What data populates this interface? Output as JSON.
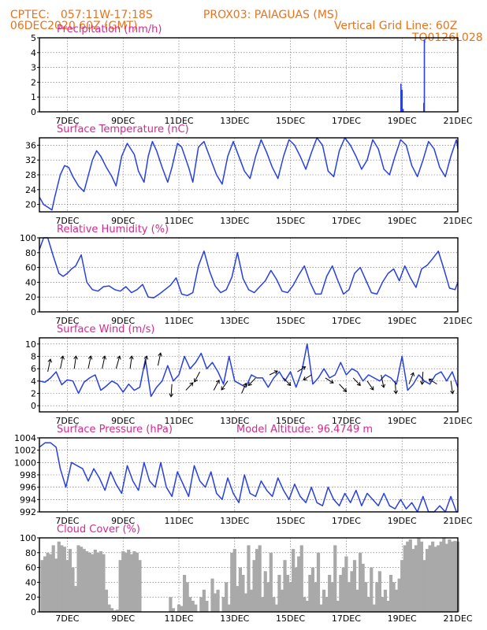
{
  "header": {
    "line1_left": "CPTEC:",
    "line1_coords": "057:11W-17:18S",
    "line1_station": "PROX03: PAIAGUAS (MS)",
    "line2_left": "06DEC2020 60Z (GMT)",
    "line2_right": "Vertical Grid Line: 60Z",
    "line3_right": "TQ0126L028"
  },
  "colors": {
    "header": "#e8731c",
    "title": "#d42a8c",
    "line": "#2840e0",
    "bar": "#a9a9a9",
    "axis": "#000000"
  },
  "chart_data": [
    {
      "id": "precipitation",
      "type": "bar",
      "title": "Precipitation (mm/h)",
      "xlim": [
        6.0,
        21.0
      ],
      "xticks": [
        7,
        9,
        11,
        13,
        15,
        17,
        19,
        21
      ],
      "xticklabels": [
        "7DEC",
        "9DEC",
        "11DEC",
        "13DEC",
        "15DEC",
        "17DEC",
        "19DEC",
        "21DEC"
      ],
      "ylim": [
        0,
        5
      ],
      "yticks": [
        0,
        1,
        2,
        3,
        4,
        5
      ],
      "x": [
        18.96,
        19.0,
        19.04,
        19.78,
        19.8
      ],
      "values": [
        1.9,
        1.5,
        0.2,
        0.6,
        4.9
      ]
    },
    {
      "id": "temperature",
      "type": "line",
      "title": "Surface Temperature (nC)",
      "xlim": [
        6.0,
        21.0
      ],
      "xticks": [
        7,
        9,
        11,
        13,
        15,
        17,
        19,
        21
      ],
      "xticklabels": [
        "7DEC",
        "9DEC",
        "11DEC",
        "13DEC",
        "15DEC",
        "17DEC",
        "19DEC",
        "21DEC"
      ],
      "ylim": [
        18,
        38
      ],
      "yticks": [
        20,
        24,
        28,
        32,
        36
      ],
      "x": [
        6.0,
        6.15,
        6.35,
        6.45,
        6.55,
        6.75,
        6.9,
        7.05,
        7.2,
        7.4,
        7.6,
        7.9,
        8.05,
        8.2,
        8.4,
        8.6,
        8.75,
        8.95,
        9.15,
        9.4,
        9.55,
        9.75,
        9.9,
        10.05,
        10.2,
        10.4,
        10.6,
        10.75,
        10.95,
        11.1,
        11.35,
        11.5,
        11.7,
        11.9,
        12.1,
        12.35,
        12.55,
        12.75,
        12.95,
        13.1,
        13.35,
        13.55,
        13.75,
        13.95,
        14.15,
        14.35,
        14.55,
        14.75,
        14.95,
        15.15,
        15.35,
        15.55,
        15.75,
        15.95,
        16.15,
        16.35,
        16.55,
        16.75,
        16.95,
        17.15,
        17.35,
        17.55,
        17.75,
        17.95,
        18.15,
        18.35,
        18.55,
        18.75,
        18.95,
        19.15,
        19.35,
        19.55,
        19.75,
        19.95,
        20.15,
        20.35,
        20.55,
        20.75,
        20.95,
        21.0
      ],
      "values": [
        22,
        20,
        19,
        18.5,
        22,
        28,
        30.5,
        30,
        27.5,
        25,
        23.5,
        32,
        34.5,
        33,
        30,
        27.5,
        25,
        33,
        36.5,
        33.5,
        29,
        26,
        33,
        37,
        34.5,
        30,
        26,
        30,
        36.5,
        35.5,
        30,
        26,
        35.5,
        37,
        33,
        28,
        25.5,
        33,
        37,
        34,
        29,
        27,
        33,
        37.5,
        34,
        30,
        27,
        33,
        37.5,
        36,
        33,
        29.5,
        34,
        38,
        36,
        29,
        27.5,
        34.5,
        38,
        36,
        33,
        29.5,
        32,
        37.5,
        35,
        29.5,
        28,
        33,
        37.5,
        36,
        30.5,
        27.5,
        32,
        37,
        35,
        30,
        27.5,
        33,
        37.5,
        35
      ]
    },
    {
      "id": "humidity",
      "type": "line",
      "title": "Relative Humidity (%)",
      "xlim": [
        6.0,
        21.0
      ],
      "xticks": [
        7,
        9,
        11,
        13,
        15,
        17,
        19,
        21
      ],
      "xticklabels": [
        "7DEC",
        "9DEC",
        "11DEC",
        "13DEC",
        "15DEC",
        "17DEC",
        "19DEC",
        "21DEC"
      ],
      "ylim": [
        0,
        100
      ],
      "yticks": [
        0,
        20,
        40,
        60,
        80,
        100
      ],
      "x": [
        6.0,
        6.15,
        6.3,
        6.5,
        6.7,
        6.85,
        7.0,
        7.15,
        7.3,
        7.5,
        7.7,
        7.9,
        8.1,
        8.3,
        8.5,
        8.7,
        8.9,
        9.1,
        9.3,
        9.5,
        9.7,
        9.9,
        10.1,
        10.3,
        10.5,
        10.7,
        10.9,
        11.1,
        11.3,
        11.5,
        11.7,
        11.9,
        12.1,
        12.3,
        12.5,
        12.7,
        12.9,
        13.1,
        13.3,
        13.5,
        13.7,
        13.9,
        14.1,
        14.3,
        14.5,
        14.7,
        14.9,
        15.1,
        15.3,
        15.5,
        15.7,
        15.9,
        16.1,
        16.3,
        16.5,
        16.7,
        16.9,
        17.1,
        17.3,
        17.5,
        17.7,
        17.9,
        18.1,
        18.3,
        18.5,
        18.7,
        18.9,
        19.1,
        19.3,
        19.5,
        19.7,
        19.9,
        20.1,
        20.3,
        20.5,
        20.7,
        20.9,
        21.0
      ],
      "values": [
        84,
        100,
        100,
        75,
        52,
        48,
        52,
        58,
        62,
        77,
        40,
        30,
        28,
        34,
        35,
        30,
        28,
        34,
        26,
        30,
        37,
        20,
        19,
        24,
        30,
        36,
        46,
        24,
        22,
        26,
        62,
        82,
        55,
        35,
        26,
        30,
        47,
        80,
        45,
        30,
        26,
        34,
        42,
        56,
        44,
        28,
        26,
        36,
        50,
        62,
        40,
        24,
        24,
        48,
        62,
        42,
        24,
        30,
        52,
        60,
        43,
        26,
        24,
        40,
        52,
        58,
        42,
        62,
        46,
        33,
        58,
        63,
        72,
        82,
        58,
        32,
        30,
        40
      ]
    },
    {
      "id": "wind",
      "type": "line",
      "title": "Surface Wind (m/s)",
      "xlim": [
        6.0,
        21.0
      ],
      "xticks": [
        7,
        9,
        11,
        13,
        15,
        17,
        19,
        21
      ],
      "xticklabels": [
        "7DEC",
        "9DEC",
        "11DEC",
        "13DEC",
        "15DEC",
        "17DEC",
        "19DEC",
        "21DEC"
      ],
      "ylim": [
        -1,
        11
      ],
      "yticks": [
        0,
        2,
        4,
        6,
        8,
        10
      ],
      "x": [
        6.0,
        6.2,
        6.4,
        6.6,
        6.8,
        7.0,
        7.2,
        7.4,
        7.6,
        7.8,
        8.0,
        8.2,
        8.4,
        8.6,
        8.8,
        9.0,
        9.2,
        9.4,
        9.6,
        9.8,
        10.0,
        10.2,
        10.4,
        10.6,
        10.8,
        11.0,
        11.2,
        11.4,
        11.6,
        11.8,
        12.0,
        12.2,
        12.4,
        12.6,
        12.8,
        13.0,
        13.2,
        13.4,
        13.6,
        13.8,
        14.0,
        14.2,
        14.4,
        14.6,
        14.8,
        15.0,
        15.2,
        15.4,
        15.6,
        15.8,
        16.0,
        16.2,
        16.4,
        16.6,
        16.8,
        17.0,
        17.2,
        17.4,
        17.6,
        17.8,
        18.0,
        18.2,
        18.4,
        18.6,
        18.8,
        19.0,
        19.2,
        19.4,
        19.6,
        19.8,
        20.0,
        20.2,
        20.4,
        20.6,
        20.8,
        21.0
      ],
      "values": [
        4,
        3.8,
        4.5,
        5.5,
        3.4,
        4.2,
        4,
        2,
        3.8,
        4.5,
        5,
        2.5,
        3.2,
        4,
        3.5,
        2.2,
        3.5,
        2.5,
        3,
        7.5,
        1.5,
        3,
        4,
        6.5,
        4,
        5,
        8,
        6,
        7,
        8.5,
        6,
        7,
        5.5,
        3.5,
        8,
        4,
        3.5,
        3,
        5,
        4.5,
        4.5,
        3,
        4.5,
        5.5,
        4,
        5.5,
        3,
        5.5,
        10,
        3.5,
        4.5,
        6,
        4.5,
        5,
        7,
        5,
        6,
        5.5,
        4,
        5,
        4.5,
        4,
        5,
        4.5,
        3.5,
        8,
        2.5,
        3.5,
        5,
        4,
        3.5,
        5,
        5.5,
        4,
        5.5,
        3
      ]
    },
    {
      "id": "pressure",
      "type": "line",
      "title": "Surface Pressure (hPa)",
      "annotation": "Model Altitude: 96.4749 m",
      "xlim": [
        6.0,
        21.0
      ],
      "xticks": [
        7,
        9,
        11,
        13,
        15,
        17,
        19,
        21
      ],
      "xticklabels": [
        "7DEC",
        "9DEC",
        "11DEC",
        "13DEC",
        "15DEC",
        "17DEC",
        "19DEC",
        "21DEC"
      ],
      "ylim": [
        992,
        1004
      ],
      "yticks": [
        992,
        994,
        996,
        998,
        1000,
        1002,
        1004
      ],
      "x": [
        6.0,
        6.2,
        6.4,
        6.6,
        6.75,
        6.95,
        7.15,
        7.35,
        7.55,
        7.75,
        7.95,
        8.15,
        8.35,
        8.55,
        8.75,
        8.95,
        9.15,
        9.35,
        9.55,
        9.75,
        9.95,
        10.15,
        10.35,
        10.55,
        10.75,
        10.95,
        11.15,
        11.35,
        11.55,
        11.75,
        11.95,
        12.15,
        12.35,
        12.55,
        12.75,
        12.95,
        13.15,
        13.35,
        13.55,
        13.75,
        13.95,
        14.15,
        14.35,
        14.55,
        14.75,
        14.95,
        15.15,
        15.35,
        15.55,
        15.75,
        15.95,
        16.15,
        16.35,
        16.55,
        16.75,
        16.95,
        17.15,
        17.35,
        17.55,
        17.75,
        17.95,
        18.15,
        18.35,
        18.55,
        18.75,
        18.95,
        19.15,
        19.35,
        19.55,
        19.75,
        19.95,
        20.15,
        20.35,
        20.55,
        20.75,
        20.95,
        21.0
      ],
      "values": [
        1002.5,
        1003.2,
        1003.2,
        1002.5,
        999,
        996,
        1000,
        999.5,
        999,
        997,
        999,
        997.5,
        995.5,
        998.5,
        996.5,
        995,
        999.5,
        997,
        995.5,
        1000,
        997,
        996,
        1000,
        996,
        994.5,
        998.5,
        996.5,
        994.5,
        999.5,
        997,
        996,
        998.5,
        995,
        994,
        997.5,
        995,
        993.5,
        998,
        995,
        994.5,
        997,
        995.5,
        994.5,
        997.5,
        995.5,
        994,
        996.5,
        994.5,
        993.5,
        996,
        993.5,
        993,
        996,
        994,
        993,
        995,
        993.5,
        995.5,
        993,
        995,
        994,
        993,
        995,
        993,
        992.5,
        994,
        992.5,
        993.5,
        992,
        994.5,
        992,
        992,
        993,
        992,
        994.5,
        992,
        992
      ]
    },
    {
      "id": "cloud",
      "type": "bar",
      "title": "Cloud Cover (%)",
      "xlim": [
        6.0,
        21.0
      ],
      "xticks": [
        7,
        9,
        11,
        13,
        15,
        17,
        19,
        21
      ],
      "xticklabels": [
        "7DEC",
        "9DEC",
        "11DEC",
        "13DEC",
        "15DEC",
        "17DEC",
        "19DEC",
        "21DEC"
      ],
      "ylim": [
        0,
        100
      ],
      "yticks": [
        0,
        20,
        40,
        60,
        80,
        100
      ],
      "x": [
        6.1,
        6.2,
        6.3,
        6.4,
        6.5,
        6.6,
        6.7,
        6.8,
        6.9,
        7.0,
        7.1,
        7.2,
        7.3,
        7.4,
        7.5,
        7.6,
        7.7,
        7.8,
        7.9,
        8.0,
        8.1,
        8.2,
        8.3,
        8.4,
        8.5,
        8.6,
        8.7,
        8.8,
        8.9,
        9.0,
        9.1,
        9.2,
        9.3,
        9.4,
        9.5,
        9.6,
        10.7,
        10.8,
        11.0,
        11.1,
        11.2,
        11.3,
        11.4,
        11.5,
        11.6,
        11.8,
        11.9,
        12.0,
        12.2,
        12.3,
        12.4,
        12.6,
        12.7,
        12.8,
        12.9,
        13.0,
        13.1,
        13.2,
        13.3,
        13.4,
        13.5,
        13.6,
        13.7,
        13.8,
        13.9,
        14.0,
        14.1,
        14.2,
        14.3,
        14.4,
        14.5,
        14.6,
        14.7,
        14.8,
        14.9,
        15.0,
        15.1,
        15.2,
        15.3,
        15.4,
        15.5,
        15.6,
        15.7,
        15.8,
        15.9,
        16.0,
        16.1,
        16.2,
        16.3,
        16.4,
        16.5,
        16.6,
        16.7,
        16.8,
        16.9,
        17.0,
        17.1,
        17.2,
        17.3,
        17.4,
        17.5,
        17.6,
        17.7,
        17.8,
        17.9,
        18.0,
        18.1,
        18.2,
        18.3,
        18.4,
        18.5,
        18.6,
        18.7,
        18.8,
        18.9,
        19.0,
        19.1,
        19.2,
        19.3,
        19.4,
        19.5,
        19.6,
        19.7,
        19.8,
        19.9,
        20.0,
        20.1,
        20.2,
        20.3,
        20.4,
        20.5,
        20.6,
        20.7,
        20.8,
        20.9,
        21.0
      ],
      "values": [
        70,
        75,
        80,
        78,
        90,
        72,
        95,
        90,
        88,
        70,
        85,
        60,
        35,
        90,
        88,
        85,
        82,
        80,
        78,
        84,
        80,
        82,
        78,
        30,
        10,
        5,
        2,
        3,
        70,
        82,
        80,
        84,
        78,
        82,
        80,
        70,
        20,
        5,
        10,
        8,
        50,
        40,
        20,
        15,
        10,
        20,
        30,
        15,
        45,
        25,
        30,
        20,
        40,
        10,
        80,
        85,
        35,
        60,
        50,
        25,
        90,
        30,
        70,
        85,
        90,
        20,
        55,
        40,
        80,
        20,
        10,
        50,
        30,
        70,
        50,
        40,
        85,
        60,
        75,
        90,
        20,
        15,
        50,
        60,
        40,
        80,
        10,
        30,
        20,
        50,
        40,
        90,
        15,
        50,
        60,
        75,
        40,
        55,
        70,
        30,
        80,
        65,
        40,
        20,
        60,
        10,
        40,
        55,
        20,
        30,
        15,
        50,
        40,
        30,
        45,
        70,
        90,
        95,
        98,
        85,
        90,
        100,
        95,
        70,
        85,
        90,
        95,
        88,
        90,
        95,
        100,
        92,
        98,
        95,
        96,
        95
      ]
    }
  ],
  "wind_vectors": {
    "x": [
      6.3,
      6.75,
      7.25,
      7.75,
      8.25,
      8.75,
      9.25,
      9.75,
      10.25,
      10.75,
      11.25,
      11.75,
      12.25,
      12.75,
      13.25,
      13.75,
      14.25,
      14.75,
      15.25,
      15.75,
      16.25,
      16.75,
      17.25,
      17.75,
      18.25,
      18.75,
      19.25,
      19.75,
      20.25,
      20.75
    ],
    "u": [
      0.3,
      0.3,
      0.2,
      0.3,
      0.3,
      0.4,
      0.2,
      0.3,
      0.3,
      -0.1,
      0.8,
      -0.6,
      0.6,
      -0.7,
      0.5,
      -0.8,
      0.9,
      0.8,
      0.9,
      -0.9,
      0.9,
      0.8,
      0.8,
      0.7,
      0.3,
      0.1,
      0.5,
      -0.1,
      -0.9,
      0.2
    ],
    "v": [
      1,
      1,
      1,
      1,
      1,
      1,
      1,
      1,
      1,
      -1,
      0.6,
      -0.8,
      0.8,
      -0.7,
      0.8,
      -0.6,
      0.3,
      -0.6,
      0.4,
      -0.4,
      -0.4,
      -0.6,
      -0.6,
      -0.7,
      -1,
      -1,
      0.9,
      -1,
      0.4,
      -1
    ],
    "baseline": [
      5.5,
      6.0,
      6.0,
      6.0,
      6.0,
      6.0,
      6.0,
      6.0,
      6.5,
      3.5,
      2.5,
      5.5,
      2.5,
      4.0,
      2.0,
      4.5,
      5.0,
      4.5,
      5.5,
      5.0,
      4.5,
      3.5,
      4.5,
      4.0,
      5.0,
      4.0,
      3.5,
      5.5,
      3.5,
      4.0
    ]
  }
}
